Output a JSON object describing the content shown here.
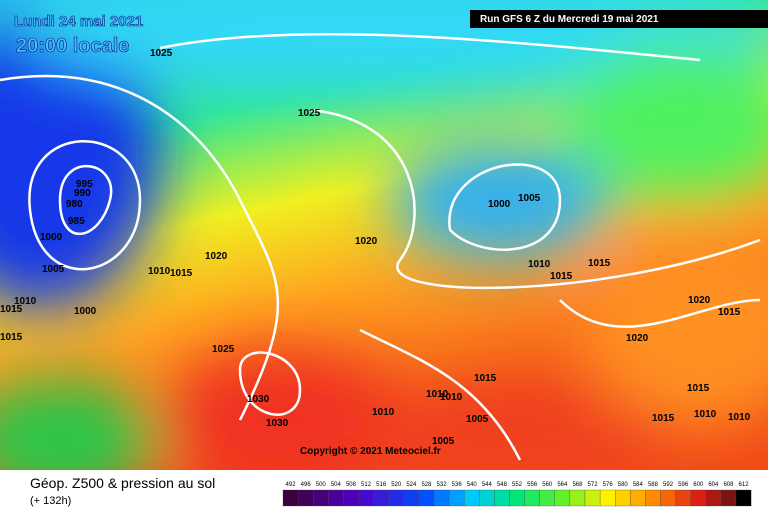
{
  "header": {
    "date": "Lundi 24 mai 2021",
    "time": "20:00 locale",
    "run": "Run GFS 6 Z du Mercredi 19 mai 2021"
  },
  "copyright": "Copyright © 2021 Meteociel.fr",
  "footer": {
    "title": "Géop. Z500 & pression au sol",
    "lead": "(+ 132h)"
  },
  "scale": [
    492,
    496,
    500,
    504,
    508,
    512,
    516,
    520,
    524,
    528,
    532,
    536,
    540,
    544,
    548,
    552,
    556,
    560,
    564,
    568,
    572,
    576,
    580,
    584,
    588,
    592,
    596,
    600,
    604,
    608,
    612
  ],
  "pressure_labels": [
    1025,
    1025,
    995,
    990,
    980,
    985,
    1000,
    1005,
    1010,
    1015,
    1015,
    1000,
    1010,
    1015,
    1020,
    1020,
    1025,
    1030,
    1030,
    1000,
    1005,
    1010,
    1015,
    1015,
    1020,
    1015,
    1020,
    1015,
    1010,
    1010,
    1010,
    1005,
    1005,
    1015,
    1015,
    1010,
    1010
  ]
}
